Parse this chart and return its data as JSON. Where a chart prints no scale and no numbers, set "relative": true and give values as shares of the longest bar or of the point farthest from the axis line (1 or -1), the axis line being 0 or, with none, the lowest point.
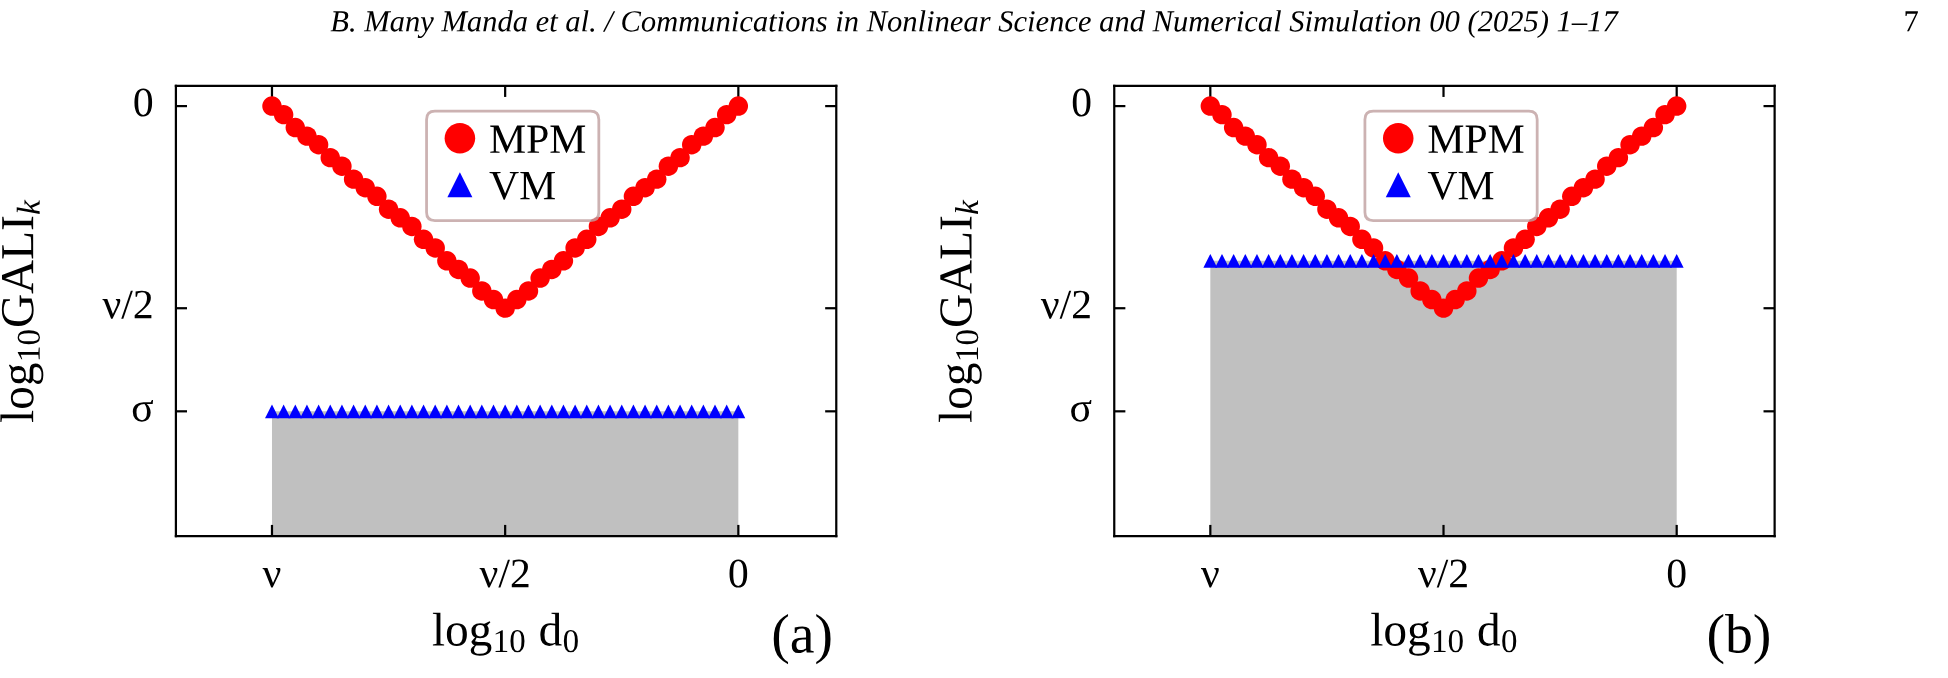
{
  "chart_data": [
    {
      "type": "scatter",
      "xlabel": "log$_{10}$ d$_{0}$",
      "ylabel": "log$_{10}$GALI$_{k}$",
      "annotations": [
        "B. Many Manda et al. / Communications in Nonlinear Science and Numerical Simulation 00 (2025) 1–17",
        "7",
        "σ",
        "ν/2",
        "0",
        "(a)"
      ],
      "relative": true,
      "categories": [
        "ν",
        null,
        null,
        null,
        null,
        null,
        null,
        null,
        null,
        null,
        null,
        null,
        null,
        null,
        null,
        null,
        null,
        null,
        null,
        null,
        "ν/2",
        null,
        null,
        null,
        null,
        null,
        null,
        null,
        null,
        null,
        null,
        null,
        null,
        null,
        null,
        null,
        null,
        null,
        null,
        null,
        "0"
      ],
      "legend": "top",
      "series": [
        {
          "type": "area",
          "color": "#c0c0c0",
          "values": [
            0.29,
            0.29,
            0.29,
            0.29,
            0.29,
            0.29,
            0.29,
            0.29,
            0.29,
            0.29,
            0.29,
            0.29,
            0.29,
            0.29,
            0.29,
            0.29,
            0.29,
            0.29,
            0.29,
            0.29,
            0.29,
            0.29,
            0.29,
            0.29,
            0.29,
            0.29,
            0.29,
            0.29,
            0.29,
            0.29,
            0.29,
            0.29,
            0.29,
            0.29,
            0.29,
            0.29,
            0.29,
            0.29,
            0.29,
            0.29,
            0.29
          ]
        },
        {
          "name": "MPM",
          "marker": "circle",
          "color": "#ff0000",
          "values": [
            1,
            0.98,
            0.95,
            0.93,
            0.91,
            0.88,
            0.86,
            0.83,
            0.81,
            0.79,
            0.76,
            0.74,
            0.72,
            0.69,
            0.67,
            0.64,
            0.62,
            0.6,
            0.57,
            0.55,
            0.53,
            0.55,
            0.57,
            0.6,
            0.62,
            0.64,
            0.67,
            0.69,
            0.72,
            0.74,
            0.76,
            0.79,
            0.81,
            0.83,
            0.86,
            0.88,
            0.91,
            0.93,
            0.95,
            0.98,
            1
          ]
        },
        {
          "name": "VM",
          "marker": "triangle",
          "color": "#0000ff",
          "values": [
            0.29,
            0.29,
            0.29,
            0.29,
            0.29,
            0.29,
            0.29,
            0.29,
            0.29,
            0.29,
            0.29,
            0.29,
            0.29,
            0.29,
            0.29,
            0.29,
            0.29,
            0.29,
            0.29,
            0.29,
            0.29,
            0.29,
            0.29,
            0.29,
            0.29,
            0.29,
            0.29,
            0.29,
            0.29,
            0.29,
            0.29,
            0.29,
            0.29,
            0.29,
            0.29,
            0.29,
            0.29,
            0.29,
            0.29,
            0.29,
            0.29
          ]
        }
      ]
    },
    {
      "type": "scatter",
      "xlabel": "log$_{10}$ d$_{0}$",
      "ylabel": "log$_{10}$GALI$_{k}$",
      "annotations": [
        "σ",
        "ν/2",
        "0",
        "(b)"
      ],
      "relative": true,
      "categories": [
        "ν",
        null,
        null,
        null,
        null,
        null,
        null,
        null,
        null,
        null,
        null,
        null,
        null,
        null,
        null,
        null,
        null,
        null,
        null,
        null,
        "ν/2",
        null,
        null,
        null,
        null,
        null,
        null,
        null,
        null,
        null,
        null,
        null,
        null,
        null,
        null,
        null,
        null,
        null,
        null,
        null,
        "0"
      ],
      "legend": "top",
      "series": [
        {
          "type": "area",
          "color": "#c0c0c0",
          "values": [
            0.64,
            0.64,
            0.64,
            0.64,
            0.64,
            0.64,
            0.64,
            0.64,
            0.64,
            0.64,
            0.64,
            0.64,
            0.64,
            0.64,
            0.64,
            0.64,
            0.64,
            0.64,
            0.64,
            0.64,
            0.64,
            0.64,
            0.64,
            0.64,
            0.64,
            0.64,
            0.64,
            0.64,
            0.64,
            0.64,
            0.64,
            0.64,
            0.64,
            0.64,
            0.64,
            0.64,
            0.64,
            0.64,
            0.64,
            0.64,
            0.64
          ]
        },
        {
          "name": "MPM",
          "marker": "circle",
          "color": "#ff0000",
          "values": [
            1,
            0.98,
            0.95,
            0.93,
            0.91,
            0.88,
            0.86,
            0.83,
            0.81,
            0.79,
            0.76,
            0.74,
            0.72,
            0.69,
            0.67,
            0.64,
            0.62,
            0.6,
            0.57,
            0.55,
            0.53,
            0.55,
            0.57,
            0.6,
            0.62,
            0.64,
            0.67,
            0.69,
            0.72,
            0.74,
            0.76,
            0.79,
            0.81,
            0.83,
            0.86,
            0.88,
            0.91,
            0.93,
            0.95,
            0.98,
            1
          ]
        },
        {
          "name": "VM",
          "marker": "triangle",
          "color": "#0000ff",
          "values": [
            0.64,
            0.64,
            0.64,
            0.64,
            0.64,
            0.64,
            0.64,
            0.64,
            0.64,
            0.64,
            0.64,
            0.64,
            0.64,
            0.64,
            0.64,
            0.64,
            0.64,
            0.64,
            0.64,
            0.64,
            0.64,
            0.64,
            0.64,
            0.64,
            0.64,
            0.64,
            0.64,
            0.64,
            0.64,
            0.64,
            0.64,
            0.64,
            0.64,
            0.64,
            0.64,
            0.64,
            0.64,
            0.64,
            0.64,
            0.64,
            0.64
          ]
        }
      ]
    }
  ]
}
